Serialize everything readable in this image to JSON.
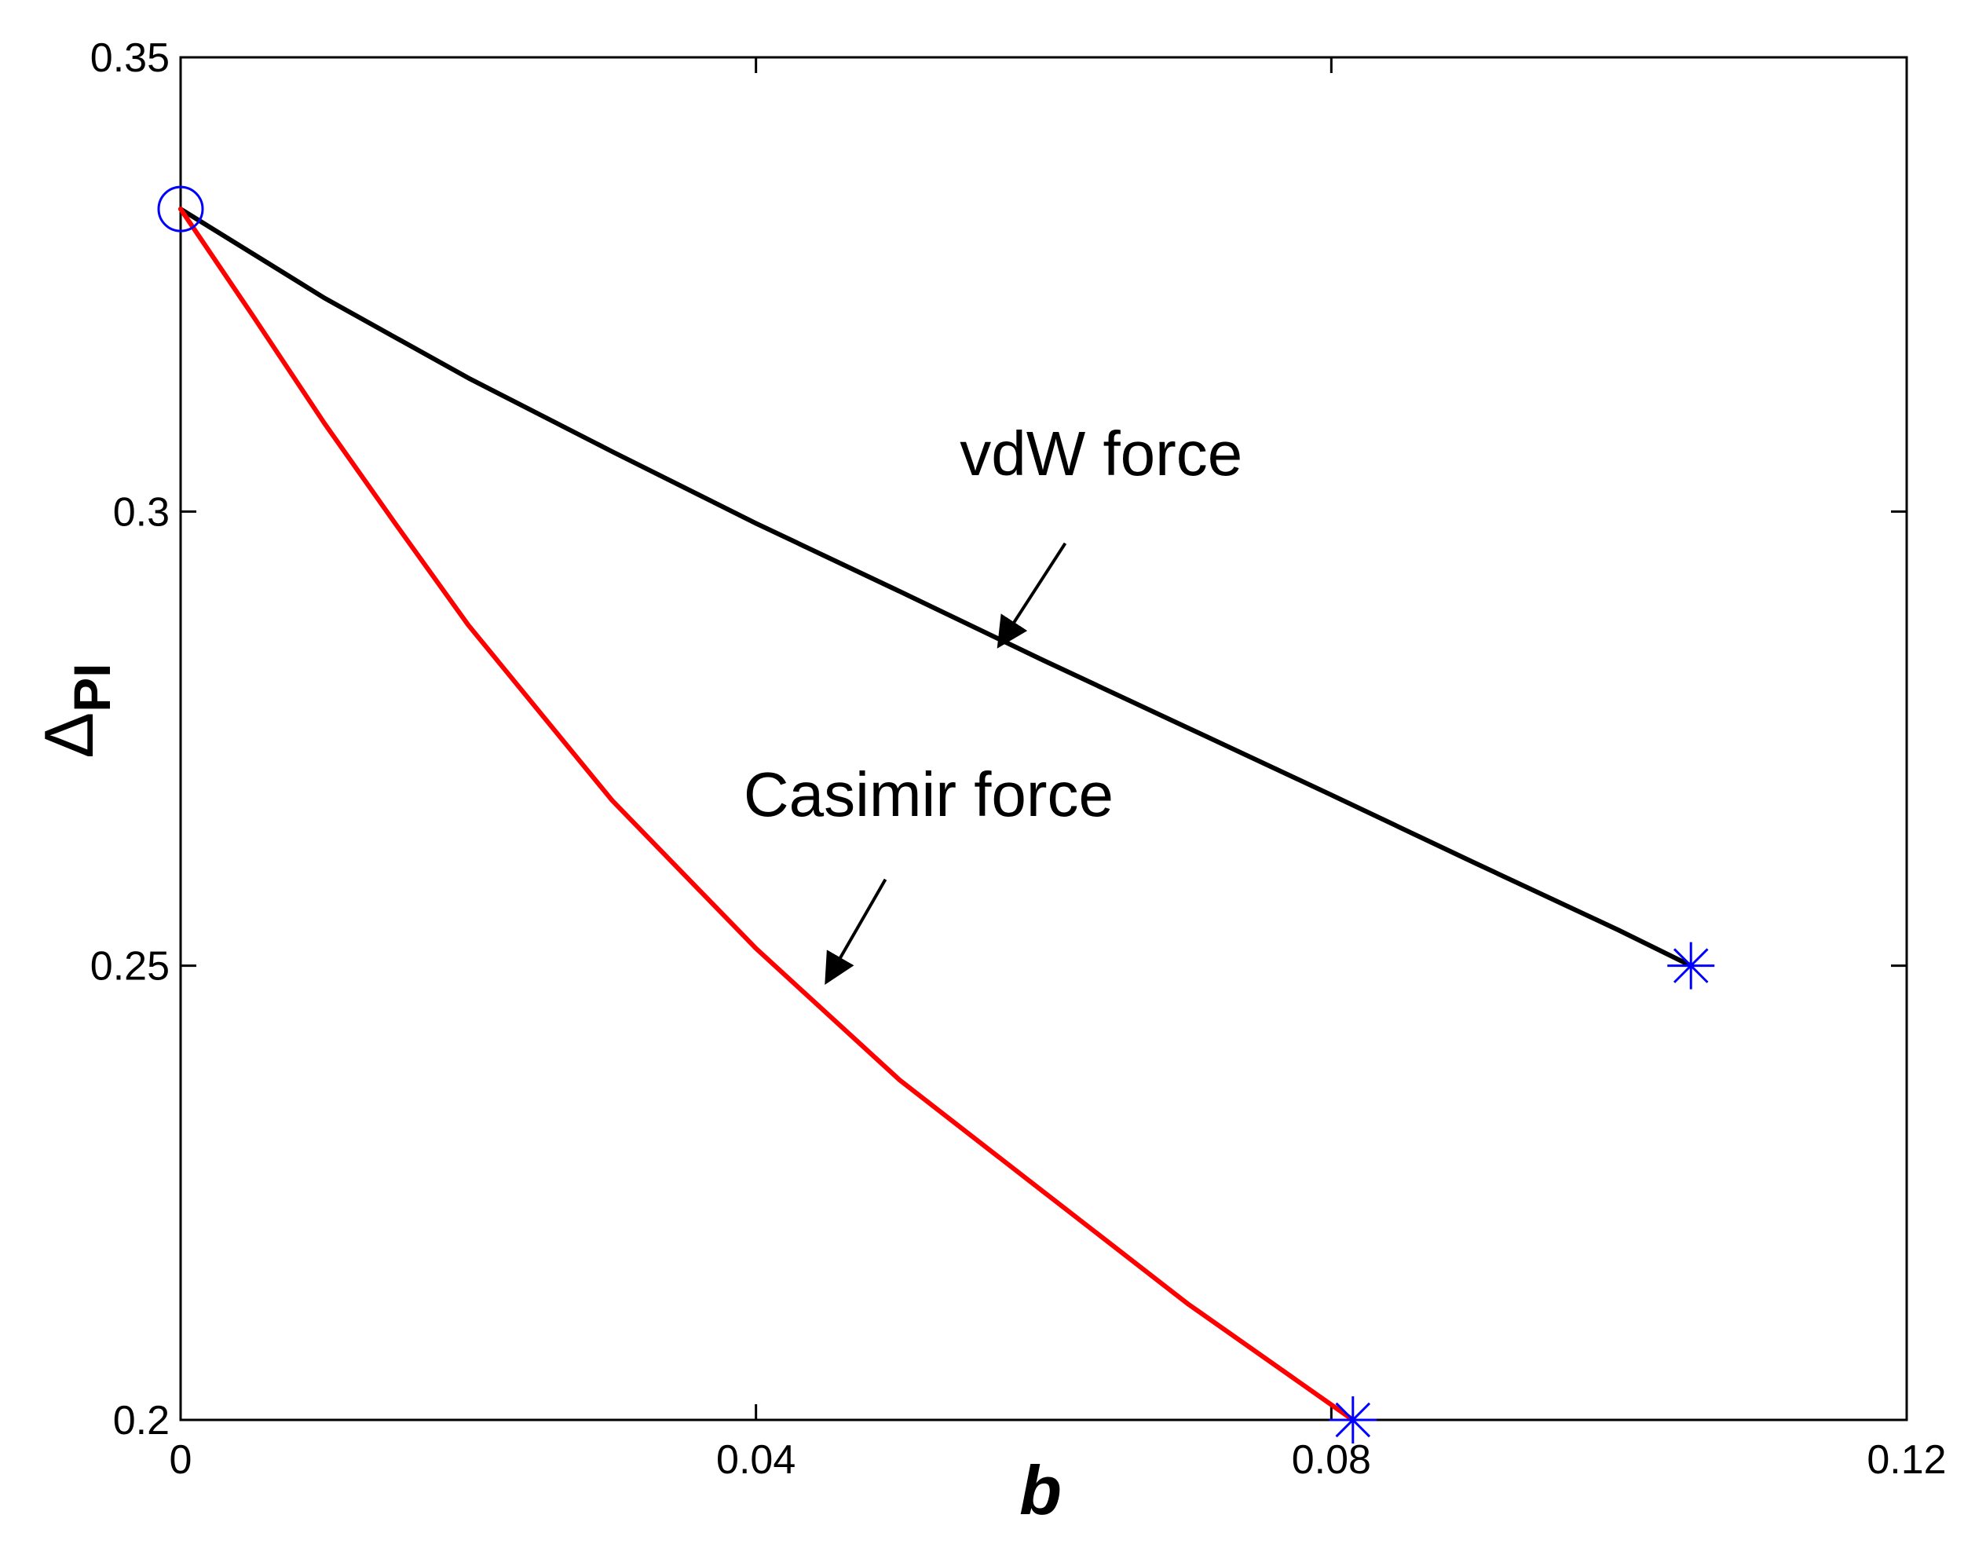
{
  "chart_data": {
    "type": "line",
    "xlabel": "b",
    "ylabel_main": "Δ",
    "ylabel_sub": "PI",
    "xlim": [
      0,
      0.12
    ],
    "ylim": [
      0.2,
      0.35
    ],
    "x_ticks": [
      0,
      0.04,
      0.08,
      0.12
    ],
    "x_tick_labels": [
      "0",
      "0.04",
      "0.08",
      "0.12"
    ],
    "y_ticks": [
      0.2,
      0.25,
      0.3,
      0.35
    ],
    "y_tick_labels": [
      "0.2",
      "0.25",
      "0.3",
      "0.35"
    ],
    "grid": false,
    "series": [
      {
        "name": "vdW force",
        "color": "#000000",
        "x": [
          0,
          0.01,
          0.02,
          0.03,
          0.04,
          0.05,
          0.06,
          0.07,
          0.08,
          0.09,
          0.1,
          0.105
        ],
        "y": [
          0.3333,
          0.3235,
          0.3147,
          0.3066,
          0.2987,
          0.2912,
          0.2836,
          0.2762,
          0.2688,
          0.2613,
          0.2539,
          0.25
        ]
      },
      {
        "name": "Casimir force",
        "color": "#ff0000",
        "x": [
          0,
          0.005,
          0.01,
          0.015,
          0.02,
          0.03,
          0.04,
          0.05,
          0.06,
          0.07,
          0.0815
        ],
        "y": [
          0.3333,
          0.3216,
          0.3097,
          0.2985,
          0.2875,
          0.2682,
          0.2519,
          0.2374,
          0.2251,
          0.2128,
          0.2
        ]
      }
    ],
    "markers": [
      {
        "type": "circle",
        "x": 0,
        "y": 0.3333,
        "color": "#0000ff"
      },
      {
        "type": "asterisk",
        "x": 0.105,
        "y": 0.25,
        "color": "#0000ff"
      },
      {
        "type": "asterisk",
        "x": 0.0815,
        "y": 0.2,
        "color": "#0000ff"
      }
    ],
    "annotations": [
      {
        "text": "vdW force",
        "x": 0.064,
        "y": 0.304,
        "arrow_from": [
          0.0615,
          0.2965
        ],
        "arrow_to": [
          0.057,
          0.2855
        ]
      },
      {
        "text": "Casimir force",
        "x": 0.052,
        "y": 0.2665,
        "arrow_from": [
          0.049,
          0.2595
        ],
        "arrow_to": [
          0.045,
          0.2485
        ]
      }
    ]
  }
}
